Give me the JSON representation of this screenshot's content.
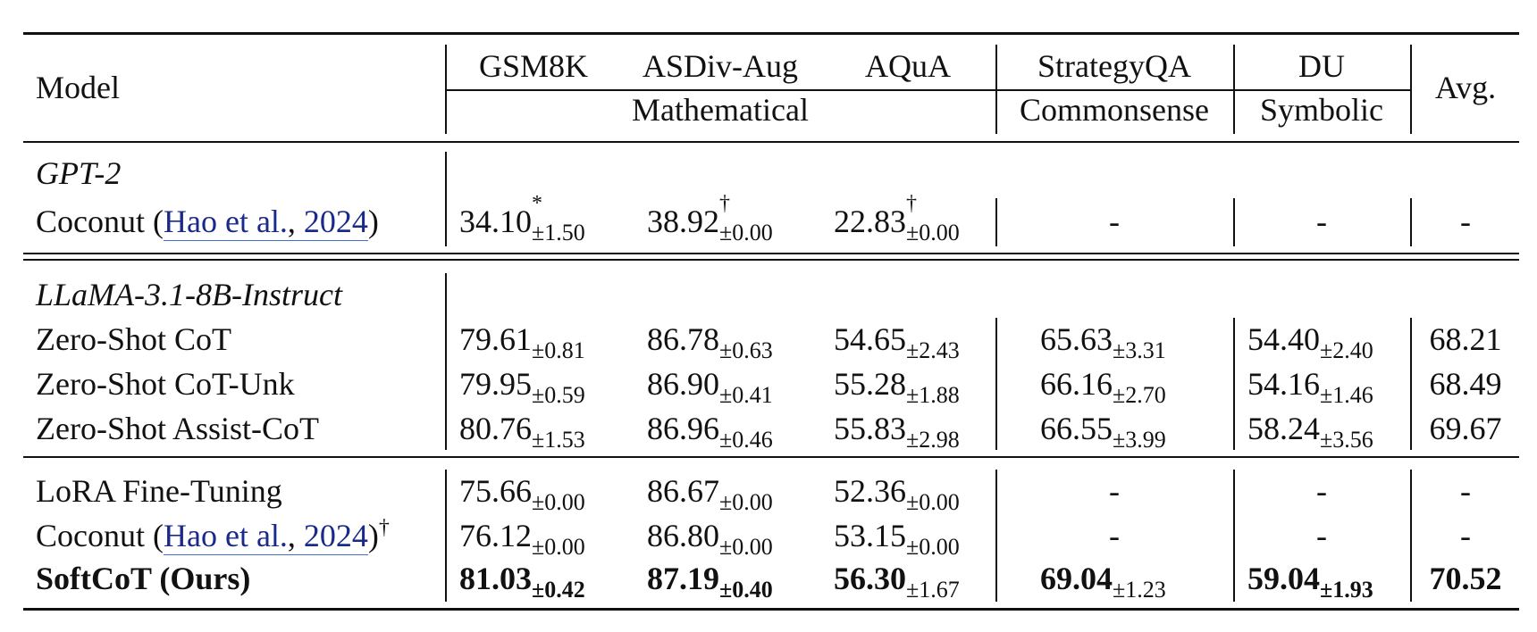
{
  "header": {
    "model": "Model",
    "datasets": [
      "GSM8K",
      "ASDiv-Aug",
      "AQuA",
      "StrategyQA",
      "DU"
    ],
    "groups": [
      "Mathematical",
      "Commonsense",
      "Symbolic"
    ],
    "avg": "Avg."
  },
  "sections": [
    {
      "title": "GPT-2",
      "rows": [
        {
          "model_prefix": "Coconut (",
          "cite_author": "Hao et al.",
          "cite_sep": ", ",
          "cite_year": "2024",
          "model_suffix": ")",
          "gsm8k": "34.10",
          "gsm8k_mark": "*",
          "gsm8k_std": "±1.50",
          "asdiv": "38.92",
          "asdiv_mark": "†",
          "asdiv_std": "±0.00",
          "aqua": "22.83",
          "aqua_mark": "†",
          "aqua_std": "±0.00",
          "strategyqa": "-",
          "du": "-",
          "avg": "-"
        }
      ]
    },
    {
      "title": "LLaMA-3.1-8B-Instruct",
      "rows": [
        {
          "model": "Zero-Shot CoT",
          "gsm8k": "79.61",
          "gsm8k_std": "±0.81",
          "asdiv": "86.78",
          "asdiv_std": "±0.63",
          "aqua": "54.65",
          "aqua_std": "±2.43",
          "strategyqa": "65.63",
          "strategyqa_std": "±3.31",
          "du": "54.40",
          "du_std": "±2.40",
          "avg": "68.21"
        },
        {
          "model": "Zero-Shot CoT-Unk",
          "gsm8k": "79.95",
          "gsm8k_std": "±0.59",
          "asdiv": "86.90",
          "asdiv_std": "±0.41",
          "aqua": "55.28",
          "aqua_std": "±1.88",
          "strategyqa": "66.16",
          "strategyqa_std": "±2.70",
          "du": "54.16",
          "du_std": "±1.46",
          "avg": "68.49"
        },
        {
          "model": "Zero-Shot Assist-CoT",
          "gsm8k": "80.76",
          "gsm8k_std": "±1.53",
          "asdiv": "86.96",
          "asdiv_std": "±0.46",
          "aqua": "55.83",
          "aqua_std": "±2.98",
          "strategyqa": "66.55",
          "strategyqa_std": "±3.99",
          "du": "58.24",
          "du_std": "±3.56",
          "avg": "69.67"
        }
      ]
    },
    {
      "rows": [
        {
          "model": "LoRA Fine-Tuning",
          "gsm8k": "75.66",
          "gsm8k_std": "±0.00",
          "asdiv": "86.67",
          "asdiv_std": "±0.00",
          "aqua": "52.36",
          "aqua_std": "±0.00",
          "strategyqa": "-",
          "du": "-",
          "avg": "-"
        },
        {
          "model_prefix": "Coconut (",
          "cite_author": "Hao et al.",
          "cite_sep": ", ",
          "cite_year": "2024",
          "model_suffix": ")",
          "model_mark": "†",
          "gsm8k": "76.12",
          "gsm8k_std": "±0.00",
          "asdiv": "86.80",
          "asdiv_std": "±0.00",
          "aqua": "53.15",
          "aqua_std": "±0.00",
          "strategyqa": "-",
          "du": "-",
          "avg": "-"
        },
        {
          "model": "SoftCoT (Ours)",
          "gsm8k": "81.03",
          "gsm8k_std": "±0.42",
          "asdiv": "87.19",
          "asdiv_std": "±0.40",
          "aqua": "56.30",
          "aqua_std": "±1.67",
          "strategyqa": "69.04",
          "strategyqa_std": "±1.23",
          "du": "59.04",
          "du_std": "±1.93",
          "avg": "70.52"
        }
      ]
    }
  ]
}
